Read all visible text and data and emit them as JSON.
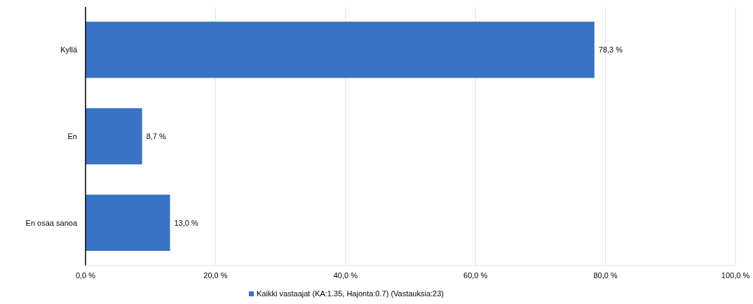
{
  "chart_data": {
    "type": "bar",
    "orientation": "horizontal",
    "categories": [
      "Kyllä",
      "En",
      "En osaa sanoa"
    ],
    "series": [
      {
        "name": "Kaikki vastaajat (KA:1.35, Hajonta:0.7) (Vastauksia:23)",
        "color": "#3a72c4",
        "values": [
          78.3,
          8.7,
          13.0
        ],
        "value_labels": [
          "78,3 %",
          "8,7 %",
          "13,0 %"
        ]
      }
    ],
    "xlim": [
      0,
      100
    ],
    "xticks": [
      {
        "value": 0,
        "label": "0,0 %"
      },
      {
        "value": 20,
        "label": "20,0 %"
      },
      {
        "value": 40,
        "label": "40,0 %"
      },
      {
        "value": 60,
        "label": "60,0 %"
      },
      {
        "value": 80,
        "label": "80,0 %"
      },
      {
        "value": 100,
        "label": "100,0 %"
      }
    ],
    "grid": "x",
    "legend": "bottom"
  }
}
